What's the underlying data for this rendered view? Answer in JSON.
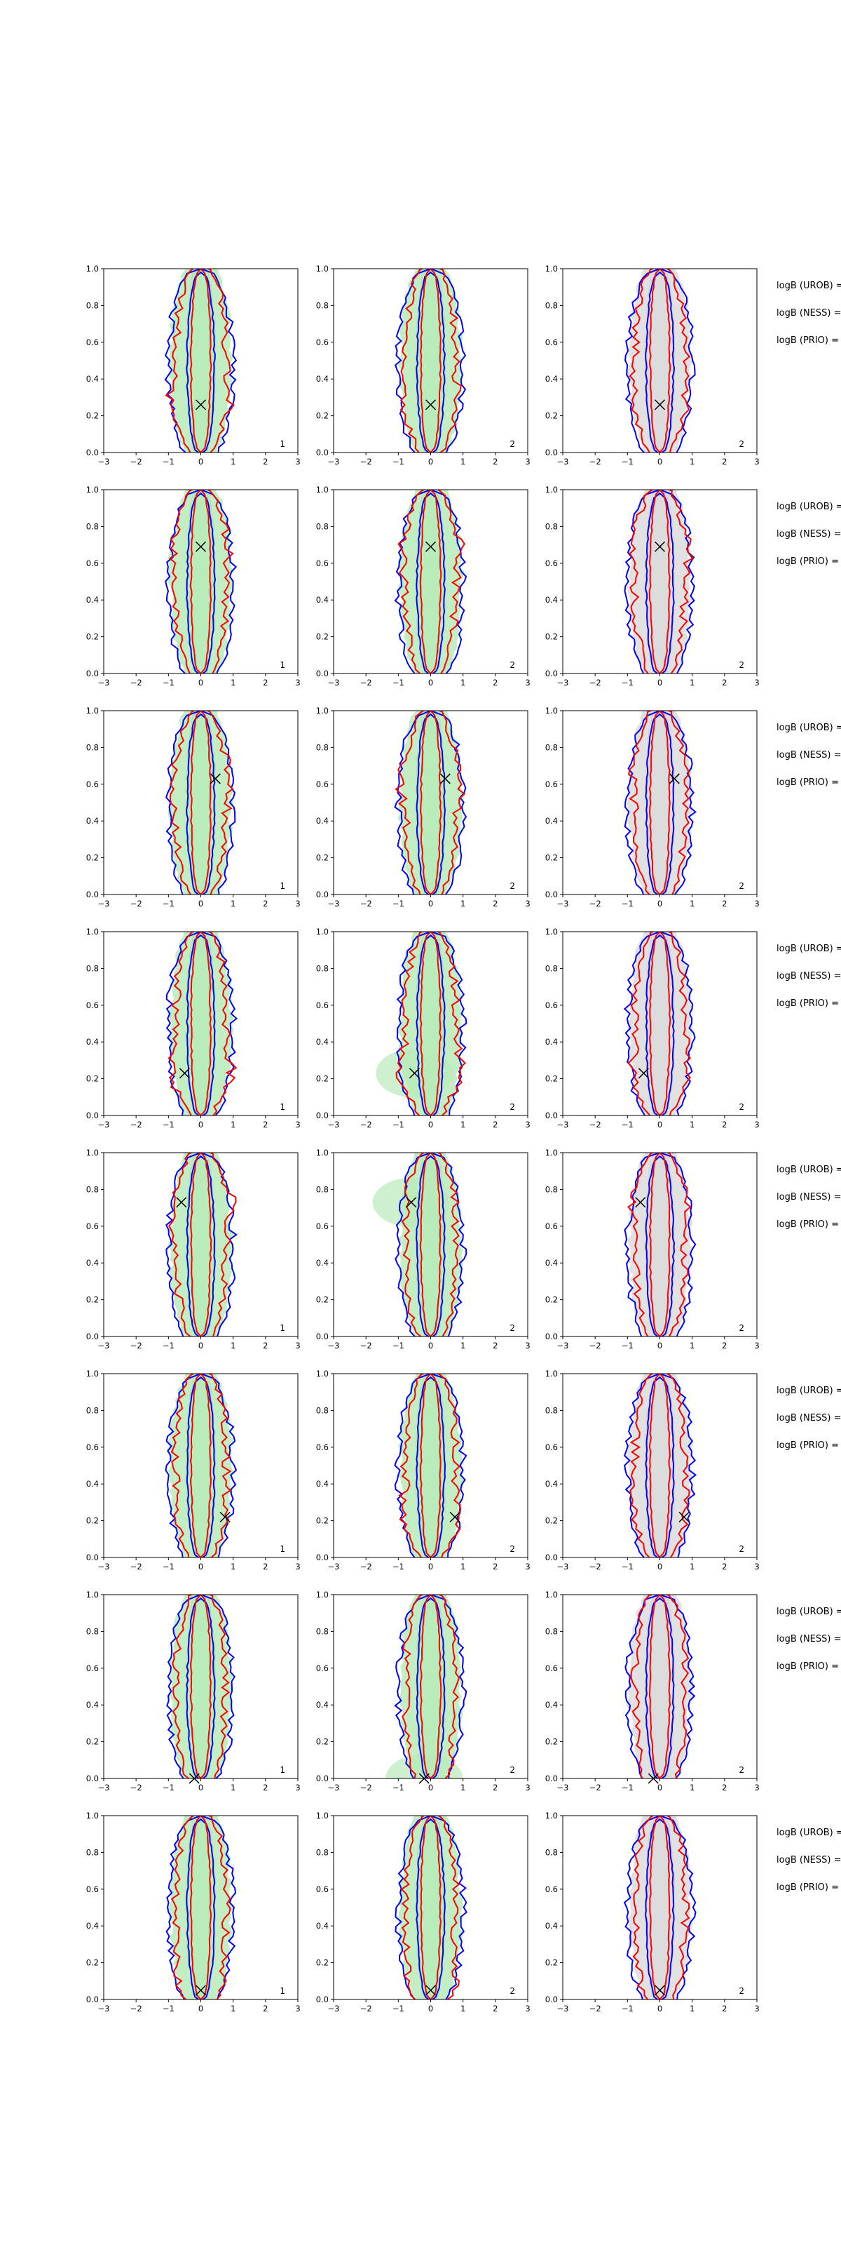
{
  "chart_data": {
    "type": "contour-grid",
    "rows": 8,
    "cols": 3,
    "xlim": [
      -3,
      3
    ],
    "ylim": [
      0,
      1.0
    ],
    "xticks": [
      "−3",
      "−2",
      "−1",
      "0",
      "1",
      "2",
      "3"
    ],
    "yticks": [
      "0.0",
      "0.2",
      "0.4",
      "0.6",
      "0.8",
      "1.0"
    ],
    "colors": {
      "fill_green": "#b9eab9",
      "fill_grey": "#dcdcdc",
      "outer_contour": "#0000ff",
      "inner_contour": "#ff0000",
      "cross": "#000000"
    },
    "corner_labels": [
      "1",
      "2",
      "2"
    ],
    "side_labels": [
      "logB (UROB) =",
      "logB (NESS) =",
      "logB (PRIO) ="
    ],
    "markers": [
      {
        "x": 0.0,
        "y": 0.26
      },
      {
        "x": 0.0,
        "y": 0.69
      },
      {
        "x": 0.45,
        "y": 0.63
      },
      {
        "x": -0.5,
        "y": 0.23
      },
      {
        "x": -0.6,
        "y": 0.73
      },
      {
        "x": 0.75,
        "y": 0.22
      },
      {
        "x": -0.2,
        "y": 0.0
      },
      {
        "x": 0.0,
        "y": 0.05
      }
    ]
  }
}
